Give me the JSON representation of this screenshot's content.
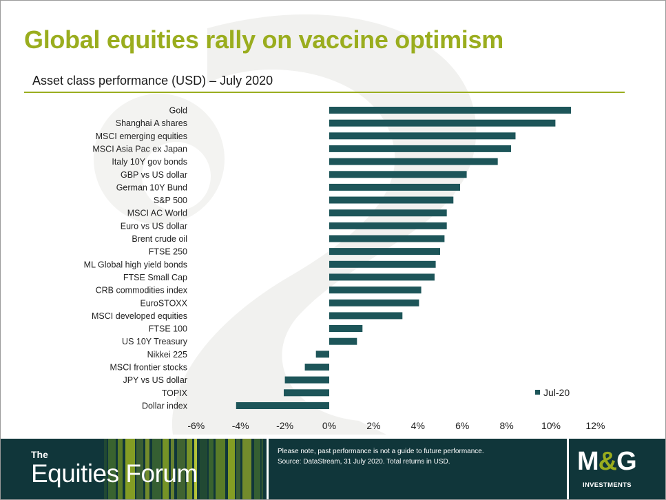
{
  "page": {
    "title": "Global equities rally on vaccine optimism",
    "subtitle": "Asset class performance (USD) – July 2020"
  },
  "colors": {
    "accent": "#9aad1e",
    "bar": "#1d5559",
    "footer": "#10363a"
  },
  "chart_data": {
    "type": "bar",
    "orientation": "horizontal",
    "title": "Asset class performance (USD) – July 2020",
    "xlabel": "",
    "ylabel": "",
    "xlim": [
      -6,
      12
    ],
    "x_ticks": [
      "-6%",
      "-4%",
      "-2%",
      "0%",
      "2%",
      "4%",
      "6%",
      "8%",
      "10%",
      "12%"
    ],
    "grid": false,
    "legend": {
      "position": "bottom-right",
      "entries": [
        "Jul-20"
      ]
    },
    "series": [
      {
        "name": "Jul-20",
        "values": [
          10.9,
          10.2,
          8.4,
          8.2,
          7.6,
          6.2,
          5.9,
          5.6,
          5.3,
          5.3,
          5.2,
          5.0,
          4.8,
          4.75,
          4.15,
          4.05,
          3.3,
          1.5,
          1.25,
          -0.6,
          -1.1,
          -2.0,
          -2.05,
          -4.2
        ]
      }
    ],
    "categories": [
      "Gold",
      "Shanghai A shares",
      "MSCI emerging equities",
      "MSCI Asia Pac ex Japan",
      "Italy 10Y gov bonds",
      "GBP vs US dollar",
      "German 10Y Bund",
      "S&P 500",
      "MSCI AC World",
      "Euro vs US dollar",
      "Brent crude oil",
      "FTSE 250",
      "ML Global high yield bonds",
      "FTSE Small Cap",
      "CRB commodities index",
      "EuroSTOXX",
      "MSCI developed equities",
      "FTSE 100",
      "US 10Y Treasury",
      "Nikkei 225",
      "MSCI frontier stocks",
      "JPY vs US dollar",
      "TOPIX",
      "Dollar index"
    ]
  },
  "footer": {
    "brand_the": "The",
    "brand_name": "Equities Forum",
    "disclaimer_line1": "Please note, past performance is not a guide to future performance.",
    "disclaimer_line2": "Source: DataStream, 31 July 2020. Total returns in USD.",
    "logo_left": "M",
    "logo_amp": "&",
    "logo_right": "G",
    "logo_sub": "INVESTMENTS"
  }
}
